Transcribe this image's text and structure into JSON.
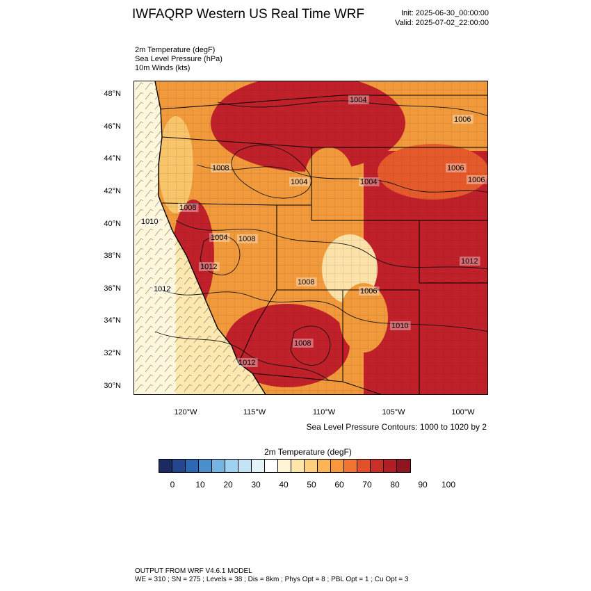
{
  "header": {
    "title": "IWFAQRP Western US Real Time WRF",
    "init": "Init: 2025-06-30_00:00:00",
    "valid": "Valid: 2025-07-02_22:00:00"
  },
  "fields": [
    "2m Temperature   (degF)",
    "Sea Level Pressure   (hPa)",
    "10m Winds   (kts)"
  ],
  "map": {
    "lat_labels": [
      "48°N",
      "46°N",
      "44°N",
      "42°N",
      "40°N",
      "38°N",
      "36°N",
      "34°N",
      "32°N",
      "30°N"
    ],
    "lon_labels": [
      "120°W",
      "115°W",
      "110°W",
      "105°W",
      "100°W"
    ],
    "contour_labels": [
      "1004",
      "1006",
      "1008",
      "1004",
      "1006",
      "1004",
      "1008",
      "1006",
      "1008",
      "1012",
      "1004",
      "1010",
      "1012",
      "1008",
      "1012",
      "1006",
      "1008",
      "1012",
      "1010"
    ],
    "colors": {
      "ocean_cold": "#fff7dc",
      "ocean_mild": "#fde8b0",
      "coast_warm": "#f9c56b",
      "land_warm": "#f19a3c",
      "land_hot": "#e55a2b",
      "land_hottest": "#c0202a",
      "mountain_cool": "#fbe2a8"
    }
  },
  "contour_info": "Sea Level Pressure Contours: 1000 to 1020 by 2",
  "colorbar": {
    "title": "2m Temperature  (degF)",
    "colors": [
      "#1c2a64",
      "#23468c",
      "#2d68b4",
      "#4b8fcc",
      "#74b4e2",
      "#9fd2f1",
      "#c4e4f6",
      "#e4f2fa",
      "#ffffff",
      "#fff4d5",
      "#fee6a9",
      "#fdd080",
      "#fbb552",
      "#f7983c",
      "#ef7531",
      "#e2512a",
      "#c8302a",
      "#b01f26",
      "#8e1620"
    ],
    "labels": [
      "0",
      "10",
      "20",
      "30",
      "40",
      "50",
      "60",
      "70",
      "80",
      "90",
      "100"
    ]
  },
  "footer": {
    "line1": "OUTPUT FROM WRF V4.6.1 MODEL",
    "line2": "WE = 310 ; SN = 275 ; Levels = 38 ; Dis = 8km ; Phys Opt = 8 ; PBL Opt = 1 ; Cu Opt = 3"
  }
}
